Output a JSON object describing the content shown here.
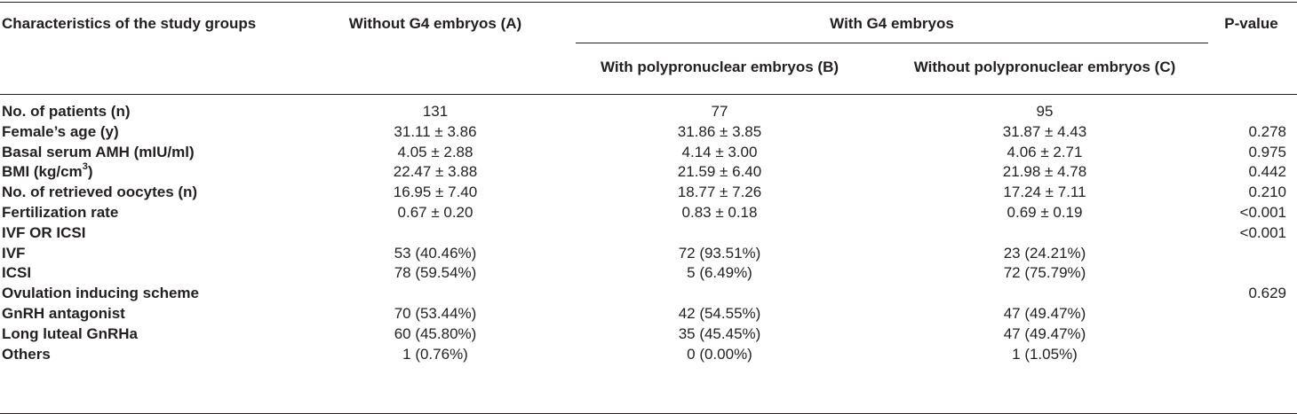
{
  "table": {
    "headers": {
      "characteristics": "Characteristics of the study groups",
      "group_a": "Without G4 embryos (A)",
      "with_g4": "With G4 embryos",
      "group_b": "With polypronuclear embryos (B)",
      "group_c": "Without polypronuclear embryos (C)",
      "p_value": "P-value"
    },
    "rows": [
      {
        "label": "No. of patients (n)",
        "a": "131",
        "b": "77",
        "c": "95",
        "p": ""
      },
      {
        "label": "Female’s age (y)",
        "a": "31.11 ± 3.86",
        "b": "31.86 ± 3.85",
        "c": "31.87 ± 4.43",
        "p": "0.278"
      },
      {
        "label": "Basal serum AMH (mIU/ml)",
        "a": "4.05 ± 2.88",
        "b": "4.14 ± 3.00",
        "c": "4.06 ± 2.71",
        "p": "0.975"
      },
      {
        "label": "BMI (kg/cm",
        "sup": "3",
        "label_end": ")",
        "a": "22.47 ± 3.88",
        "b": "21.59 ± 6.40",
        "c": "21.98 ± 4.78",
        "p": "0.442"
      },
      {
        "label": "No. of retrieved oocytes (n)",
        "a": "16.95 ± 7.40",
        "b": "18.77 ± 7.26",
        "c": "17.24 ± 7.11",
        "p": "0.210"
      },
      {
        "label": "Fertilization rate",
        "a": "0.67 ± 0.20",
        "b": "0.83 ± 0.18",
        "c": "0.69 ± 0.19",
        "p": "<0.001"
      },
      {
        "label": "IVF OR ICSI",
        "a": "",
        "b": "",
        "c": "",
        "p": "<0.001"
      },
      {
        "label": "IVF",
        "a": "53 (40.46%)",
        "b": "72 (93.51%)",
        "c": "23 (24.21%)",
        "p": ""
      },
      {
        "label": "ICSI",
        "a": "78 (59.54%)",
        "b": "5 (6.49%)",
        "c": "72 (75.79%)",
        "p": ""
      },
      {
        "label": "Ovulation inducing scheme",
        "a": "",
        "b": "",
        "c": "",
        "p": "0.629"
      },
      {
        "label": "GnRH antagonist",
        "a": "70 (53.44%)",
        "b": "42 (54.55%)",
        "c": "47 (49.47%)",
        "p": ""
      },
      {
        "label": "Long luteal GnRHa",
        "a": "60 (45.80%)",
        "b": "35 (45.45%)",
        "c": "47 (49.47%)",
        "p": ""
      },
      {
        "label": "Others",
        "a": "1 (0.76%)",
        "b": "0 (0.00%)",
        "c": "1 (1.05%)",
        "p": ""
      }
    ]
  }
}
